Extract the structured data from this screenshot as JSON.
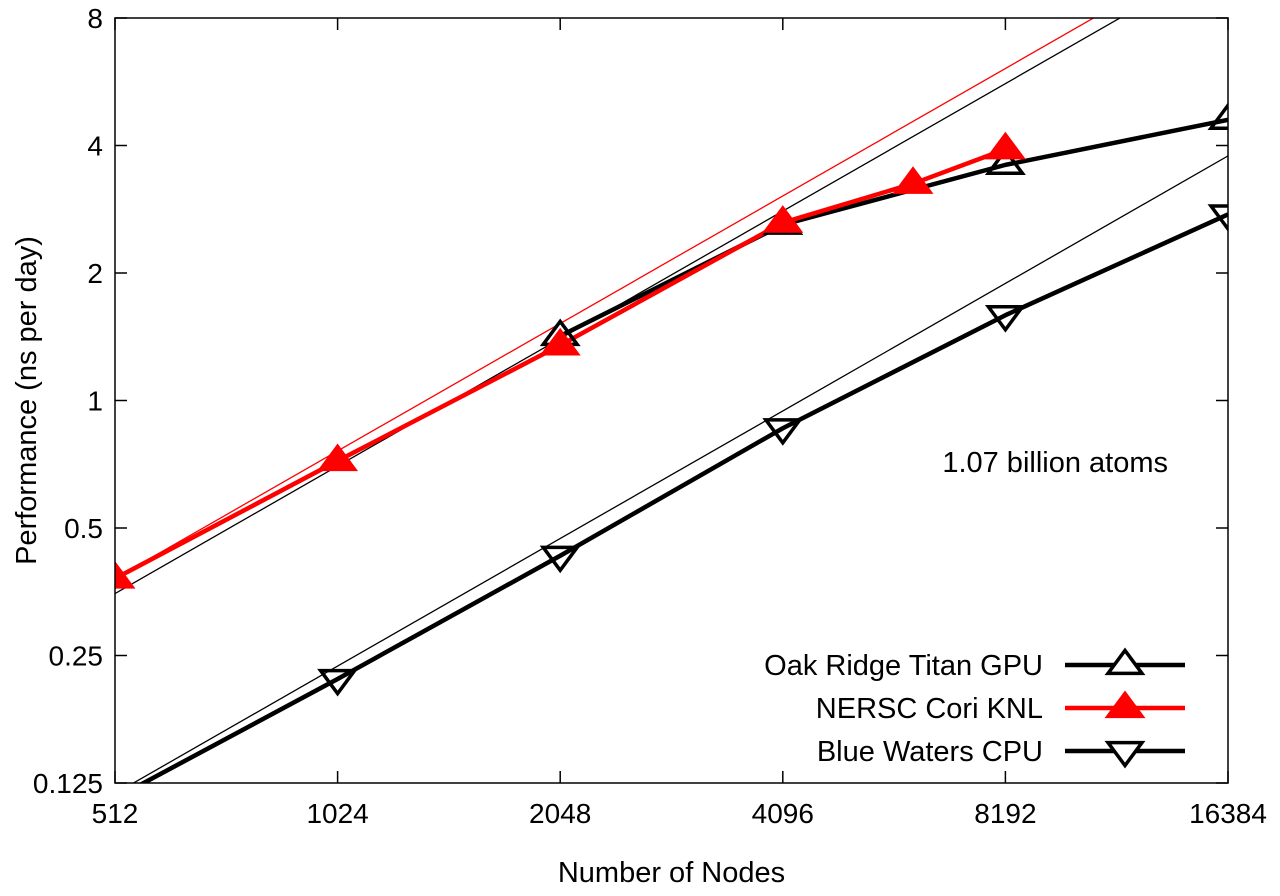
{
  "chart_data": {
    "type": "line",
    "title": "",
    "xlabel": "Number of Nodes",
    "ylabel": "Performance (ns per day)",
    "x_scale": "log2",
    "y_scale": "log2",
    "xlim": [
      512,
      16384
    ],
    "ylim": [
      0.125,
      8
    ],
    "x_ticks": [
      512,
      1024,
      2048,
      4096,
      8192,
      16384
    ],
    "x_tick_labels": [
      "512",
      "1024",
      "2048",
      "4096",
      "8192",
      "16384"
    ],
    "y_ticks": [
      0.125,
      0.25,
      0.5,
      1,
      2,
      4,
      8
    ],
    "y_tick_labels": [
      "0.125",
      "0.25",
      "0.5",
      "1",
      "2",
      "4",
      "8"
    ],
    "grid": false,
    "legend_position": "bottom-right",
    "annotation": "1.07 billion atoms",
    "series": [
      {
        "name": "Oak Ridge Titan GPU",
        "color": "#000000",
        "marker": "triangle-up-open",
        "x": [
          2048,
          4096,
          8192,
          16384
        ],
        "y": [
          1.42,
          2.6,
          3.6,
          4.6
        ]
      },
      {
        "name": "NERSC Cori KNL",
        "color": "#ff0000",
        "marker": "triangle-up-filled",
        "x": [
          512,
          1024,
          2048,
          4096,
          6144,
          8192
        ],
        "y": [
          0.38,
          0.72,
          1.35,
          2.63,
          3.25,
          3.92
        ]
      },
      {
        "name": "Blue Waters CPU",
        "color": "#000000",
        "marker": "triangle-down-open",
        "x": [
          512,
          1024,
          2048,
          4096,
          8192,
          16384
        ],
        "y": [
          0.115,
          0.22,
          0.43,
          0.86,
          1.59,
          2.75
        ]
      }
    ],
    "reference_lines": [
      {
        "color": "#000000",
        "x": [
          512,
          16384
        ],
        "y": [
          0.35,
          11.2
        ]
      },
      {
        "color": "#ff0000",
        "x": [
          512,
          16384
        ],
        "y": [
          0.38,
          12.16
        ]
      },
      {
        "color": "#000000",
        "x": [
          512,
          16384
        ],
        "y": [
          0.118,
          3.78
        ]
      }
    ]
  }
}
